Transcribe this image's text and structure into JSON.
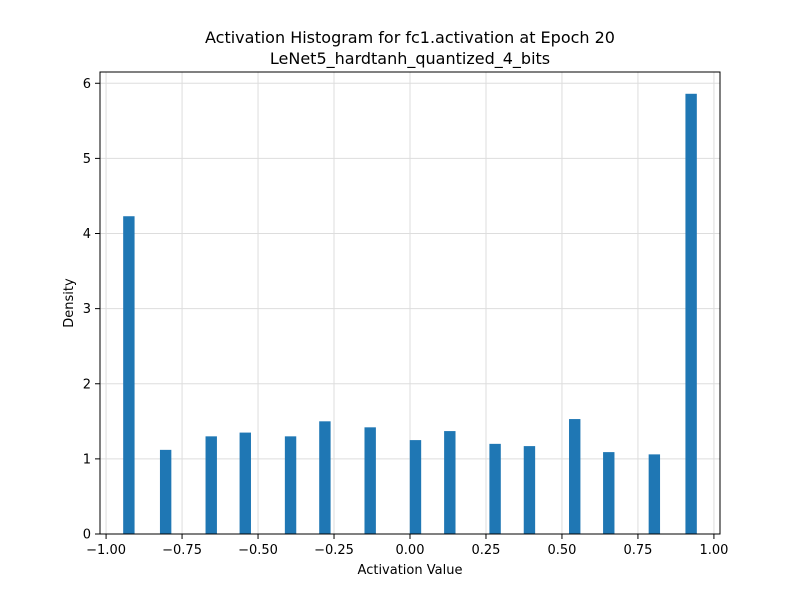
{
  "chart_data": {
    "type": "bar",
    "title": "Activation Histogram for fc1.activation at Epoch 20",
    "subtitle": "LeNet5_hardtanh_quantized_4_bits",
    "xlabel": "Activation Value",
    "ylabel": "Density",
    "xlim": [
      -1.02,
      1.02
    ],
    "ylim": [
      0,
      6.15
    ],
    "grid": true,
    "bar_color": "#1f77b4",
    "grid_color": "#dddddd",
    "bin_width": 0.0375,
    "x_ticks": [
      -1.0,
      -0.75,
      -0.5,
      -0.25,
      0.0,
      0.25,
      0.5,
      0.75,
      1.0
    ],
    "x_tick_labels": [
      "−1.00",
      "−0.75",
      "−0.50",
      "−0.25",
      "0.00",
      "0.25",
      "0.50",
      "0.75",
      "1.00"
    ],
    "y_ticks": [
      0,
      1,
      2,
      3,
      4,
      5,
      6
    ],
    "y_tick_labels": [
      "0",
      "1",
      "2",
      "3",
      "4",
      "5",
      "6"
    ],
    "bars": [
      {
        "x": -0.925,
        "value": 4.23
      },
      {
        "x": -0.804,
        "value": 1.12
      },
      {
        "x": -0.654,
        "value": 1.3
      },
      {
        "x": -0.542,
        "value": 1.35
      },
      {
        "x": -0.393,
        "value": 1.3
      },
      {
        "x": -0.28,
        "value": 1.5
      },
      {
        "x": -0.131,
        "value": 1.42
      },
      {
        "x": 0.018,
        "value": 1.25
      },
      {
        "x": 0.131,
        "value": 1.37
      },
      {
        "x": 0.28,
        "value": 1.2
      },
      {
        "x": 0.393,
        "value": 1.17
      },
      {
        "x": 0.542,
        "value": 1.53
      },
      {
        "x": 0.654,
        "value": 1.09
      },
      {
        "x": 0.804,
        "value": 1.06
      },
      {
        "x": 0.925,
        "value": 5.86
      }
    ]
  }
}
